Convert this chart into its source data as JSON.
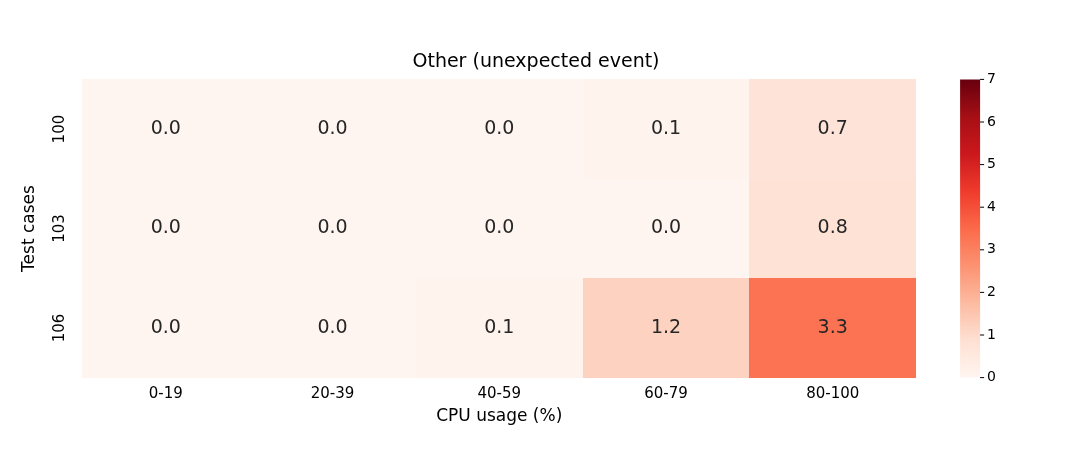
{
  "chart_data": {
    "type": "heatmap",
    "title": "Other (unexpected event)",
    "xlabel": "CPU usage (%)",
    "ylabel": "Test cases",
    "categories": [
      "0-19",
      "20-39",
      "40-59",
      "60-79",
      "80-100"
    ],
    "y_categories": [
      "100",
      "103",
      "106"
    ],
    "cells": [
      [
        0.0,
        0.0,
        0.0,
        0.1,
        0.7
      ],
      [
        0.0,
        0.0,
        0.0,
        0.0,
        0.8
      ],
      [
        0.0,
        0.0,
        0.1,
        1.2,
        3.3
      ]
    ],
    "cell_labels": [
      [
        "0.0",
        "0.0",
        "0.0",
        "0.1",
        "0.7"
      ],
      [
        "0.0",
        "0.0",
        "0.0",
        "0.0",
        "0.8"
      ],
      [
        "0.0",
        "0.0",
        "0.1",
        "1.2",
        "3.3"
      ]
    ],
    "data_labels": true,
    "clim": [
      0,
      7
    ],
    "cticks": [
      0,
      1,
      2,
      3,
      4,
      5,
      6,
      7
    ]
  }
}
